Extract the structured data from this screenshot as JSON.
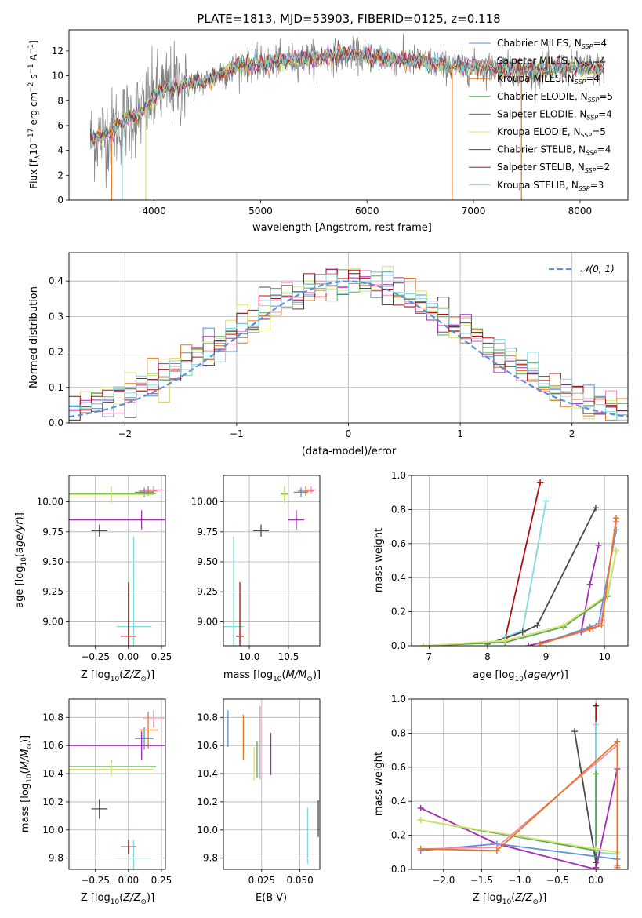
{
  "colors": {
    "chabrier_miles": "#5b8fd6",
    "salpeter_miles": "#f08cb8",
    "kroupa_miles": "#e8761c",
    "chabrier_elodie": "#58a85a",
    "salpeter_elodie": "#a32bb8",
    "kroupa_elodie": "#d7e66a",
    "chabrier_stelib": "#4a4a4a",
    "salpeter_stelib": "#b01010",
    "kroupa_stelib": "#7fdcdc",
    "data": "#808080",
    "normal": "#5b8fd6",
    "grid": "#b0b0b0"
  },
  "chart_data": [
    {
      "id": "spectrum",
      "type": "line",
      "title": "PLATE=1813, MJD=53903, FIBERID=0125, z=0.118",
      "xlabel": "wavelength [Angstrom, rest frame]",
      "ylabel": "Flux [fλ10⁻¹⁷ erg cm⁻² s⁻¹ A⁻¹]",
      "xlim": [
        3200,
        8450
      ],
      "ylim": [
        0,
        13.7
      ],
      "xticks": [
        "4000",
        "5000",
        "6000",
        "7000",
        "8000"
      ],
      "yticks": [
        "0",
        "2",
        "4",
        "6",
        "8",
        "10",
        "12"
      ],
      "grid": false,
      "legend": "right",
      "continuum_x": [
        3400,
        3600,
        3700,
        3900,
        4000,
        4100,
        4300,
        4500,
        4800,
        5000,
        5300,
        5600,
        5800,
        6000,
        6300,
        6600,
        6800,
        7200,
        7600,
        8000,
        8230
      ],
      "continuum_y": [
        4.8,
        5.6,
        6.3,
        7.2,
        8.4,
        9.0,
        9.3,
        9.6,
        10.8,
        11.0,
        11.3,
        11.5,
        11.7,
        11.6,
        11.3,
        11.0,
        10.8,
        10.6,
        10.4,
        10.7,
        10.5
      ],
      "series": [
        {
          "name": "Chabrier MILES, N_SSP=4",
          "label_main": "Chabrier MILES, N",
          "label_sub": "SSP",
          "label_end": "=4",
          "color_key": "chabrier_miles"
        },
        {
          "name": "Salpeter MILES, N_SSP=4",
          "label_main": "Salpeter MILES, N",
          "label_sub": "SSP",
          "label_end": "=4",
          "color_key": "salpeter_miles"
        },
        {
          "name": "Kroupa MILES, N_SSP=4",
          "label_main": "Kroupa MILES, N",
          "label_sub": "SSP",
          "label_end": "=4",
          "color_key": "kroupa_miles"
        },
        {
          "name": "Chabrier ELODIE, N_SSP=5",
          "label_main": "Chabrier ELODIE, N",
          "label_sub": "SSP",
          "label_end": "=5",
          "color_key": "chabrier_elodie"
        },
        {
          "name": "Salpeter ELODIE, N_SSP=4",
          "label_main": "Salpeter ELODIE, N",
          "label_sub": "SSP",
          "label_end": "=4",
          "color_key": "salpeter_elodie"
        },
        {
          "name": "Kroupa ELODIE, N_SSP=5",
          "label_main": "Kroupa ELODIE, N",
          "label_sub": "SSP",
          "label_end": "=5",
          "color_key": "kroupa_elodie"
        },
        {
          "name": "Chabrier STELIB, N_SSP=4",
          "label_main": "Chabrier STELIB, N",
          "label_sub": "SSP",
          "label_end": "=4",
          "color_key": "chabrier_stelib"
        },
        {
          "name": "Salpeter STELIB, N_SSP=2",
          "label_main": "Salpeter STELIB, N",
          "label_sub": "SSP",
          "label_end": "=2",
          "color_key": "salpeter_stelib"
        },
        {
          "name": "Kroupa STELIB, N_SSP=3",
          "label_main": "Kroupa STELIB, N",
          "label_sub": "SSP",
          "label_end": "=3",
          "color_key": "kroupa_stelib"
        }
      ],
      "dropouts": [
        {
          "x": 3600,
          "color_key": "kroupa_miles"
        },
        {
          "x": 3700,
          "color_key": "kroupa_stelib"
        },
        {
          "x": 3920,
          "color_key": "kroupa_elodie"
        },
        {
          "x": 6800,
          "color_key": "kroupa_miles"
        },
        {
          "x": 7450,
          "color_key": "kroupa_miles"
        }
      ]
    },
    {
      "id": "residuals",
      "type": "area",
      "xlabel": "(data-model)/error",
      "ylabel": "Normed distribution",
      "xlim": [
        -2.5,
        2.5
      ],
      "ylim": [
        0,
        0.48
      ],
      "xticks": [
        "−2",
        "−1",
        "0",
        "1",
        "2"
      ],
      "yticks": [
        "0.0",
        "0.1",
        "0.2",
        "0.3",
        "0.4"
      ],
      "grid": true,
      "legend": "top-right",
      "normal_label": "𝒩(0, 1)",
      "bins": 50,
      "bin_range": [
        -2.5,
        2.5
      ]
    },
    {
      "id": "age_vs_Z",
      "type": "scatter",
      "xlabel": "Z [log₁₀(Z/Z⊙)]",
      "ylabel": "age  [log₁₀(age/yr)]",
      "xlim": [
        -0.45,
        0.28
      ],
      "ylim": [
        8.8,
        10.22
      ],
      "xticks": [
        "−0.25",
        "0.00",
        "0.25"
      ],
      "yticks": [
        "9.00",
        "9.25",
        "9.50",
        "9.75",
        "10.00"
      ],
      "points": [
        {
          "x": 0.19,
          "y": 10.1,
          "xerr": 0.08,
          "yerr": 0.03,
          "color_key": "salpeter_miles"
        },
        {
          "x": 0.15,
          "y": 10.09,
          "xerr": 0.07,
          "yerr": 0.04,
          "color_key": "kroupa_miles"
        },
        {
          "x": 0.12,
          "y": 10.08,
          "xerr": 0.07,
          "yerr": 0.04,
          "color_key": "chabrier_miles"
        },
        {
          "x": -0.13,
          "y": 10.07,
          "xerr": 0.34,
          "yerr": 0.06,
          "color_key": "chabrier_elodie"
        },
        {
          "x": -0.13,
          "y": 10.06,
          "xerr": 0.32,
          "yerr": 0.07,
          "color_key": "kroupa_elodie"
        },
        {
          "x": 0.1,
          "y": 9.85,
          "xerr": 0.55,
          "yerr": 0.08,
          "color_key": "salpeter_elodie"
        },
        {
          "x": -0.22,
          "y": 9.76,
          "xerr": 0.06,
          "yerr": 0.05,
          "color_key": "chabrier_stelib"
        },
        {
          "x": 0.04,
          "y": 8.96,
          "xerr": 0.13,
          "yerr": 0.75,
          "color_key": "kroupa_stelib"
        },
        {
          "x": 0.0,
          "y": 8.88,
          "xerr": 0.06,
          "yerr": 0.45,
          "color_key": "salpeter_stelib"
        }
      ]
    },
    {
      "id": "age_vs_mass",
      "type": "scatter",
      "xlabel": "mass [log₁₀(M/M⊙)]",
      "ylabel": "",
      "xlim": [
        9.67,
        10.9
      ],
      "ylim": [
        8.8,
        10.22
      ],
      "xticks": [
        "10.0",
        "10.5"
      ],
      "yticks": [
        "9.00",
        "9.25",
        "9.50",
        "9.75",
        "10.00"
      ],
      "points": [
        {
          "x": 10.79,
          "y": 10.1,
          "xerr": 0.06,
          "yerr": 0.03,
          "color_key": "salpeter_miles"
        },
        {
          "x": 10.72,
          "y": 10.09,
          "xerr": 0.1,
          "yerr": 0.04,
          "color_key": "kroupa_miles"
        },
        {
          "x": 10.66,
          "y": 10.08,
          "xerr": 0.09,
          "yerr": 0.04,
          "color_key": "chabrier_miles"
        },
        {
          "x": 10.45,
          "y": 10.07,
          "xerr": 0.05,
          "yerr": 0.06,
          "color_key": "chabrier_elodie"
        },
        {
          "x": 10.45,
          "y": 10.06,
          "xerr": 0.05,
          "yerr": 0.07,
          "color_key": "kroupa_elodie"
        },
        {
          "x": 10.6,
          "y": 9.85,
          "xerr": 0.1,
          "yerr": 0.08,
          "color_key": "salpeter_elodie"
        },
        {
          "x": 10.15,
          "y": 9.76,
          "xerr": 0.1,
          "yerr": 0.05,
          "color_key": "chabrier_stelib"
        },
        {
          "x": 9.8,
          "y": 8.96,
          "xerr": 0.13,
          "yerr": 0.75,
          "color_key": "kroupa_stelib"
        },
        {
          "x": 9.88,
          "y": 8.88,
          "xerr": 0.05,
          "yerr": 0.45,
          "color_key": "salpeter_stelib"
        }
      ]
    },
    {
      "id": "massweight_vs_age",
      "type": "line",
      "xlabel": "age  [log₁₀(age/yr)]",
      "ylabel": "mass weight",
      "xlim": [
        6.7,
        10.4
      ],
      "ylim": [
        0,
        1.0
      ],
      "xticks": [
        "7",
        "8",
        "9",
        "10"
      ],
      "yticks": [
        "0.0",
        "0.2",
        "0.4",
        "0.6",
        "0.8",
        "1.0"
      ],
      "grid": true,
      "series": [
        {
          "color_key": "salpeter_stelib",
          "x": [
            8.3,
            8.9
          ],
          "y": [
            0.04,
            0.96
          ]
        },
        {
          "color_key": "kroupa_stelib",
          "x": [
            8.3,
            8.6,
            9.0
          ],
          "y": [
            0.05,
            0.09,
            0.85
          ]
        },
        {
          "color_key": "chabrier_stelib",
          "x": [
            8.0,
            8.6,
            8.85,
            9.85
          ],
          "y": [
            0.01,
            0.08,
            0.12,
            0.81
          ]
        },
        {
          "color_key": "salpeter_elodie",
          "x": [
            8.7,
            9.6,
            9.75,
            9.9
          ],
          "y": [
            0.0,
            0.08,
            0.36,
            0.59
          ]
        },
        {
          "color_key": "chabrier_elodie",
          "x": [
            6.9,
            8.3,
            9.3,
            10.05,
            10.2
          ],
          "y": [
            0.0,
            0.02,
            0.11,
            0.29,
            0.56
          ]
        },
        {
          "color_key": "kroupa_elodie",
          "x": [
            6.9,
            8.3,
            9.3,
            10.05,
            10.2
          ],
          "y": [
            0.0,
            0.03,
            0.12,
            0.3,
            0.56
          ]
        },
        {
          "color_key": "chabrier_miles",
          "x": [
            8.9,
            9.75,
            9.9,
            10.2
          ],
          "y": [
            0.01,
            0.11,
            0.13,
            0.68
          ]
        },
        {
          "color_key": "salpeter_miles",
          "x": [
            8.9,
            9.8,
            9.95,
            10.2
          ],
          "y": [
            0.01,
            0.1,
            0.15,
            0.73
          ]
        },
        {
          "color_key": "kroupa_miles",
          "x": [
            8.9,
            9.75,
            9.95,
            10.2
          ],
          "y": [
            0.01,
            0.1,
            0.12,
            0.75
          ]
        }
      ]
    },
    {
      "id": "mass_vs_Z",
      "type": "scatter",
      "xlabel": "Z [log₁₀(Z/Z⊙)]",
      "ylabel": "mass [log₁₀(M/M⊙)]",
      "xlim": [
        -0.45,
        0.28
      ],
      "ylim": [
        9.72,
        10.93
      ],
      "xticks": [
        "−0.25",
        "0.00",
        "0.25"
      ],
      "yticks": [
        "9.8",
        "10.0",
        "10.2",
        "10.4",
        "10.6",
        "10.8"
      ],
      "points": [
        {
          "x": 0.19,
          "y": 10.79,
          "xerr": 0.08,
          "yerr": 0.06,
          "color_key": "salpeter_miles"
        },
        {
          "x": 0.15,
          "y": 10.71,
          "xerr": 0.07,
          "yerr": 0.13,
          "color_key": "kroupa_miles"
        },
        {
          "x": 0.12,
          "y": 10.65,
          "xerr": 0.07,
          "yerr": 0.08,
          "color_key": "chabrier_miles"
        },
        {
          "x": -0.13,
          "y": 10.45,
          "xerr": 0.34,
          "yerr": 0.05,
          "color_key": "chabrier_elodie"
        },
        {
          "x": -0.13,
          "y": 10.43,
          "xerr": 0.32,
          "yerr": 0.05,
          "color_key": "kroupa_elodie"
        },
        {
          "x": 0.1,
          "y": 10.6,
          "xerr": 0.55,
          "yerr": 0.1,
          "color_key": "salpeter_elodie"
        },
        {
          "x": -0.22,
          "y": 10.15,
          "xerr": 0.06,
          "yerr": 0.07,
          "color_key": "chabrier_stelib"
        },
        {
          "x": 0.04,
          "y": 9.8,
          "xerr": 0.13,
          "yerr": 0.13,
          "color_key": "kroupa_stelib"
        },
        {
          "x": 0.0,
          "y": 9.88,
          "xerr": 0.06,
          "yerr": 0.05,
          "color_key": "salpeter_stelib"
        }
      ]
    },
    {
      "id": "mass_vs_ebv",
      "type": "scatter",
      "xlabel": "E(B-V)",
      "ylabel": "",
      "xlim": [
        0.0,
        0.063
      ],
      "ylim": [
        9.72,
        10.93
      ],
      "xticks": [
        "0.025",
        "0.050"
      ],
      "yticks": [
        "9.8",
        "10.0",
        "10.2",
        "10.4",
        "10.6",
        "10.8"
      ],
      "points": [
        {
          "x": 0.003,
          "y": 10.72,
          "xerr": 0.0,
          "yerr": 0.13,
          "color_key": "chabrier_miles"
        },
        {
          "x": 0.013,
          "y": 10.66,
          "xerr": 0.0,
          "yerr": 0.16,
          "color_key": "kroupa_miles"
        },
        {
          "x": 0.02,
          "y": 10.47,
          "xerr": 0.0,
          "yerr": 0.12,
          "color_key": "kroupa_elodie"
        },
        {
          "x": 0.022,
          "y": 10.5,
          "xerr": 0.0,
          "yerr": 0.13,
          "color_key": "chabrier_elodie"
        },
        {
          "x": 0.024,
          "y": 10.62,
          "xerr": 0.0,
          "yerr": 0.26,
          "color_key": "salpeter_miles"
        },
        {
          "x": 0.031,
          "y": 10.54,
          "xerr": 0.0,
          "yerr": 0.15,
          "color_key": "salpeter_elodie"
        },
        {
          "x": 0.055,
          "y": 9.96,
          "xerr": 0.0,
          "yerr": 0.2,
          "color_key": "kroupa_stelib"
        },
        {
          "x": 0.062,
          "y": 10.08,
          "xerr": 0.0,
          "yerr": 0.13,
          "color_key": "chabrier_stelib"
        }
      ]
    },
    {
      "id": "massweight_vs_Z",
      "type": "line",
      "xlabel": "Z [log₁₀(Z/Z⊙)]",
      "ylabel": "mass weight",
      "xlim": [
        -2.42,
        0.42
      ],
      "ylim": [
        0,
        1.0
      ],
      "xticks": [
        "−2.0",
        "−1.5",
        "−1.0",
        "−0.5",
        "0.0"
      ],
      "yticks": [
        "0.0",
        "0.2",
        "0.4",
        "0.6",
        "0.8",
        "1.0"
      ],
      "grid": true,
      "series": [
        {
          "color_key": "salpeter_stelib",
          "x": [
            0.0,
            0.0
          ],
          "y": [
            0.01,
            0.96
          ]
        },
        {
          "color_key": "kroupa_stelib",
          "x": [
            0.0,
            0.0,
            0.28
          ],
          "y": [
            0.85,
            0.1,
            0.09
          ]
        },
        {
          "color_key": "chabrier_stelib",
          "x": [
            -0.28,
            0.0,
            0.0
          ],
          "y": [
            0.81,
            0.04,
            0.12
          ]
        },
        {
          "color_key": "salpeter_elodie",
          "x": [
            -2.3,
            -1.3,
            0.0,
            0.28
          ],
          "y": [
            0.36,
            0.15,
            0.0,
            0.59
          ]
        },
        {
          "color_key": "chabrier_elodie",
          "x": [
            -2.3,
            0.0,
            0.0
          ],
          "y": [
            0.29,
            0.11,
            0.56
          ]
        },
        {
          "color_key": "kroupa_elodie",
          "x": [
            -2.3,
            0.0,
            0.28
          ],
          "y": [
            0.29,
            0.12,
            0.1
          ]
        },
        {
          "color_key": "chabrier_miles",
          "x": [
            -2.3,
            -1.3,
            0.28
          ],
          "y": [
            0.11,
            0.15,
            0.06
          ]
        },
        {
          "color_key": "salpeter_miles",
          "x": [
            -2.3,
            -1.3,
            0.28,
            0.28
          ],
          "y": [
            0.12,
            0.13,
            0.73,
            0.02
          ]
        },
        {
          "color_key": "kroupa_miles",
          "x": [
            -2.3,
            -1.3,
            0.28,
            0.28
          ],
          "y": [
            0.12,
            0.11,
            0.75,
            0.01
          ]
        }
      ]
    }
  ]
}
